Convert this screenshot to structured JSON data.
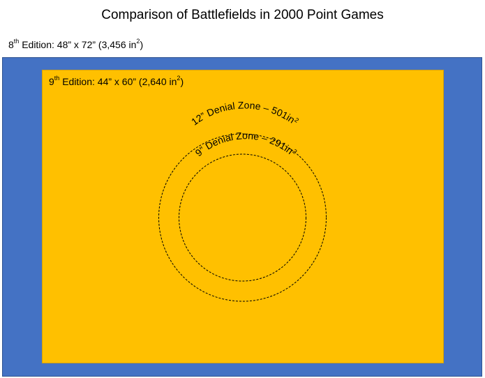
{
  "title": "Comparison of Battlefields in 2000 Point Games",
  "boards": {
    "eighth": {
      "edition_prefix": "8",
      "edition_sup": "th",
      "text_before_sup": " Edition: 48” x 72” (3,456 in",
      "area_sup": "2",
      "text_after_sup": ")",
      "color": "#4472c4"
    },
    "ninth": {
      "edition_prefix": "9",
      "edition_sup": "th",
      "text_before_sup": " Edition: 44” x 60” (2,640 in",
      "area_sup": "2",
      "text_after_sup": ")",
      "color": "#ffc000"
    }
  },
  "zones": {
    "outer": {
      "label_main": "12” Denial Zone – 501in",
      "label_sup": "2"
    },
    "inner": {
      "label_main": "9” Denial Zone – 291in",
      "label_sup": "2"
    }
  }
}
